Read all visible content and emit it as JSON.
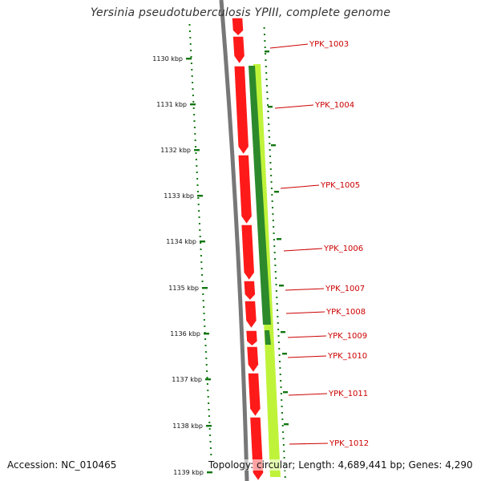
{
  "title": "Yersinia pseudotuberculosis YPIII, complete genome",
  "accession": "Accession: NC_010465",
  "summary": "Topology: circular; Length: 4,689,441 bp; Genes: 4,290",
  "scale_ticks": [
    "1130 kbp",
    "1131 kbp",
    "1132 kbp",
    "1133 kbp",
    "1134 kbp",
    "1135 kbp",
    "1136 kbp",
    "1137 kbp",
    "1138 kbp",
    "1139 kbp"
  ],
  "genes": [
    "YPK_1003",
    "YPK_1004",
    "YPK_1005",
    "YPK_1006",
    "YPK_1007",
    "YPK_1008",
    "YPK_1009",
    "YPK_1010",
    "YPK_1011",
    "YPK_1012"
  ],
  "colors": {
    "gene_red": "#ff1a1a",
    "gene_label": "#cc0000",
    "scale_green": "#117711",
    "track_lightgreen": "#bff33a",
    "track_darkgreen": "#2c8a2c",
    "backbone": "#777777"
  }
}
